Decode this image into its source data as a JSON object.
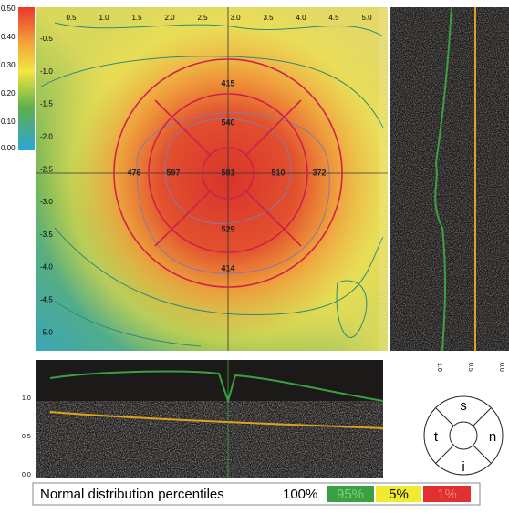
{
  "color_scale": {
    "labels": [
      "0.50",
      "0.40",
      "0.30",
      "0.20",
      "0.10",
      "0.00"
    ]
  },
  "map": {
    "top_axis": [
      "0.5",
      "1.0",
      "1.5",
      "2.0",
      "2.5",
      "3.0",
      "3.5",
      "4.0",
      "4.5",
      "5.0"
    ],
    "left_axis": [
      "-0.5",
      "-1.0",
      "-1.5",
      "-2.0",
      "-2.5",
      "-3.0",
      "-3.5",
      "-4.0",
      "-4.5",
      "-5.0"
    ],
    "sectors": {
      "superior_outer": "415",
      "superior_inner": "540",
      "temporal_outer": "476",
      "temporal_inner": "597",
      "center": "581",
      "nasal_inner": "510",
      "nasal_outer": "372",
      "inferior_inner": "529",
      "inferior_outer": "414"
    }
  },
  "vertical_scan": {
    "labels": [
      "1.0",
      "0.5",
      "0.0"
    ]
  },
  "horizontal_scan": {
    "labels": [
      "1.0",
      "0.5",
      "0.0"
    ]
  },
  "orientation": {
    "s": "s",
    "t": "t",
    "n": "n",
    "i": "i"
  },
  "legend": {
    "title": "Normal distribution percentiles",
    "p100": "100%",
    "p95": "95%",
    "p5": "5%",
    "p1": "1%"
  }
}
